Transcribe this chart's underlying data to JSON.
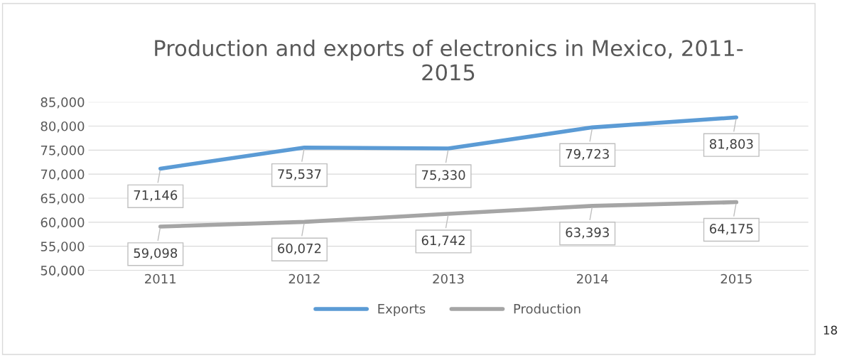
{
  "chart_data": {
    "type": "line",
    "title": "Production and exports of electronics in Mexico, 2011-\n2015",
    "categories": [
      "2011",
      "2012",
      "2013",
      "2014",
      "2015"
    ],
    "series": [
      {
        "name": "Exports",
        "color": "#5b9bd5",
        "values": [
          71146,
          75537,
          75330,
          79723,
          81803
        ],
        "value_labels": [
          "71,146",
          "75,537",
          "75,330",
          "79,723",
          "81,803"
        ]
      },
      {
        "name": "Production",
        "color": "#a5a5a5",
        "values": [
          59098,
          60072,
          61742,
          63393,
          64175
        ],
        "value_labels": [
          "59,098",
          "60,072",
          "61,742",
          "63,393",
          "64,175"
        ]
      }
    ],
    "ylim": [
      50000,
      85000
    ],
    "yticks": [
      {
        "value": 50000,
        "label": "50,000"
      },
      {
        "value": 55000,
        "label": "55,000"
      },
      {
        "value": 60000,
        "label": "60,000"
      },
      {
        "value": 65000,
        "label": "65,000"
      },
      {
        "value": 70000,
        "label": "70,000"
      },
      {
        "value": 75000,
        "label": "75,000"
      },
      {
        "value": 80000,
        "label": "80,000"
      },
      {
        "value": 85000,
        "label": "85,000"
      }
    ],
    "grid": "y",
    "legend": "bottom",
    "marker": "none",
    "line_style": "solid",
    "annotations": [
      "18"
    ]
  }
}
